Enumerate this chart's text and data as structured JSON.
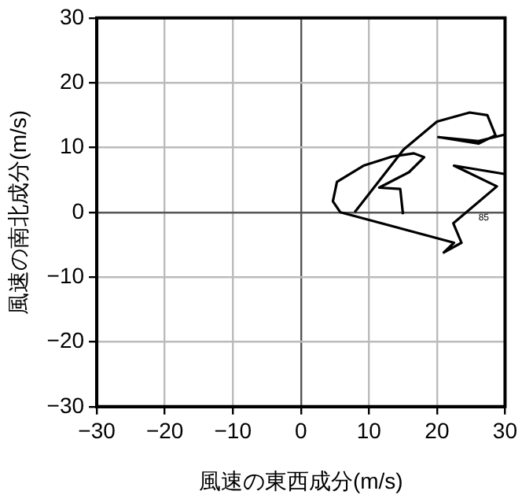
{
  "chart_data": {
    "type": "line",
    "xlabel": "風速の東西成分(m/s)",
    "ylabel": "風速の南北成分(m/s)",
    "series": [
      {
        "color": "#000000",
        "x": [
          15,
          14.6,
          11.5,
          15.9,
          18.1,
          16.6,
          13.4,
          9.2,
          5.3,
          4.7,
          5.8,
          22.5,
          21,
          23.6,
          22.4,
          28.8,
          22.5,
          30
        ],
        "values": [
          -0.3,
          3.6,
          3.8,
          6.2,
          8.5,
          9.1,
          8.6,
          7.2,
          4.7,
          1.7,
          0,
          -4.7,
          -6.2,
          -4.7,
          -1.7,
          4,
          7.2,
          5.9
        ]
      },
      {
        "color": "#000000",
        "x": [
          7.9,
          15.1,
          20,
          24.8,
          27.4,
          28.6,
          26.1,
          20.2,
          26.1,
          30
        ],
        "values": [
          0,
          9.7,
          14,
          15.4,
          15,
          11.9,
          10.6,
          11.6,
          11,
          12
        ]
      }
    ],
    "xlim": [
      -30,
      30
    ],
    "ylim": [
      -30,
      30
    ],
    "xticks": [
      -30,
      -20,
      -10,
      0,
      10,
      20,
      30
    ],
    "yticks": [
      -30,
      -20,
      -10,
      0,
      10,
      20,
      30
    ],
    "grid": true,
    "legend": false,
    "marker": "none",
    "line_style": "solid",
    "annotations": [
      "85"
    ]
  }
}
